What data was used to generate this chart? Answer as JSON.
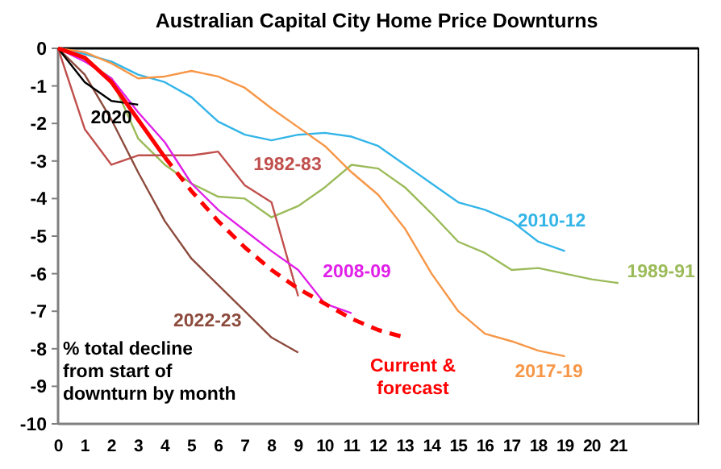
{
  "chart_data": {
    "type": "line",
    "title": "Australian Capital City Home Price Downturns",
    "xlim": [
      0,
      24
    ],
    "xticks": [
      0,
      1,
      2,
      3,
      4,
      5,
      6,
      7,
      8,
      9,
      10,
      11,
      12,
      13,
      14,
      15,
      16,
      17,
      18,
      19,
      20,
      21
    ],
    "ylim": [
      -10,
      0
    ],
    "yticks": [
      -10,
      -9,
      -8,
      -7,
      -6,
      -5,
      -4,
      -3,
      -2,
      -1,
      0
    ],
    "grid": false,
    "marker": "none",
    "annotations": [
      "% total decline\nfrom start of\ndownturn by month"
    ],
    "series": [
      {
        "name": "2010-12",
        "color": "#33b5e8",
        "x": [
          0,
          1,
          2,
          3,
          4,
          5,
          6,
          7,
          8,
          9,
          10,
          11,
          12,
          13,
          14,
          15,
          16,
          17,
          18,
          19
        ],
        "values": [
          0,
          -0.15,
          -0.35,
          -0.7,
          -0.9,
          -1.3,
          -1.95,
          -2.3,
          -2.45,
          -2.3,
          -2.25,
          -2.35,
          -2.6,
          -3.1,
          -3.6,
          -4.1,
          -4.3,
          -4.6,
          -5.15,
          -5.4
        ]
      },
      {
        "name": "1989-91",
        "color": "#9bbb59",
        "x": [
          0,
          1,
          2,
          3,
          4,
          5,
          6,
          7,
          8,
          9,
          10,
          11,
          12,
          13,
          14,
          15,
          16,
          17,
          18,
          19,
          20,
          21
        ],
        "values": [
          0,
          -0.3,
          -0.8,
          -2.4,
          -3.1,
          -3.6,
          -3.95,
          -4.0,
          -4.5,
          -4.2,
          -3.7,
          -3.1,
          -3.2,
          -3.7,
          -4.4,
          -5.15,
          -5.45,
          -5.9,
          -5.85,
          -6.0,
          -6.15,
          -6.25
        ]
      },
      {
        "name": "2017-19",
        "color": "#f79646",
        "x": [
          0,
          1,
          2,
          3,
          4,
          5,
          6,
          7,
          8,
          9,
          10,
          11,
          12,
          13,
          14,
          15,
          16,
          17,
          18,
          19
        ],
        "values": [
          0,
          -0.1,
          -0.4,
          -0.8,
          -0.75,
          -0.6,
          -0.75,
          -1.05,
          -1.6,
          -2.1,
          -2.6,
          -3.3,
          -3.9,
          -4.8,
          -6.0,
          -7.0,
          -7.6,
          -7.8,
          -8.05,
          -8.2
        ]
      },
      {
        "name": "1982-83",
        "color": "#c0504d",
        "x": [
          0,
          1,
          2,
          3,
          4,
          5,
          6,
          7,
          8,
          9
        ],
        "values": [
          0,
          -2.15,
          -3.1,
          -2.85,
          -2.85,
          -2.85,
          -2.75,
          -3.65,
          -4.1,
          -6.6
        ]
      },
      {
        "name": "2008-09",
        "color": "#e020e8",
        "x": [
          0,
          1,
          2,
          3,
          4,
          5,
          6,
          7,
          8,
          9,
          10,
          11
        ],
        "values": [
          0,
          -0.35,
          -0.8,
          -1.7,
          -2.5,
          -3.6,
          -4.3,
          -4.85,
          -5.4,
          -5.9,
          -6.8,
          -7.05
        ]
      },
      {
        "name": "2022-23",
        "color": "#8c4a3c",
        "x": [
          0,
          1,
          2,
          3,
          4,
          5,
          6,
          7,
          8,
          9
        ],
        "values": [
          0,
          -0.7,
          -1.9,
          -3.3,
          -4.6,
          -5.6,
          -6.3,
          -7.0,
          -7.7,
          -8.1
        ]
      },
      {
        "name": "2020",
        "color": "#000000",
        "x": [
          0,
          1,
          2,
          3
        ],
        "values": [
          0,
          -0.9,
          -1.4,
          -1.5
        ]
      },
      {
        "name": "Current & forecast",
        "color": "#ff0000",
        "x": [
          0,
          1,
          2,
          3,
          4
        ],
        "values": [
          0,
          -0.25,
          -0.9,
          -1.9,
          -2.9
        ]
      },
      {
        "color": "#ff0000",
        "line_style": "dashed",
        "x": [
          4,
          5,
          6,
          7,
          8,
          9,
          10,
          11,
          12,
          13
        ],
        "values": [
          -2.9,
          -3.8,
          -4.6,
          -5.3,
          -5.9,
          -6.4,
          -6.8,
          -7.2,
          -7.5,
          -7.7
        ]
      }
    ]
  }
}
